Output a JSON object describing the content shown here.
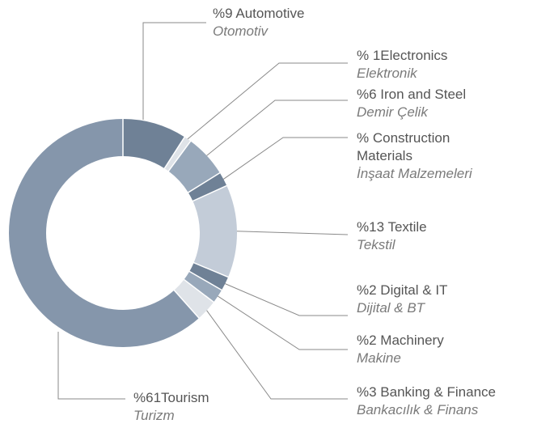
{
  "chart_data": {
    "type": "pie",
    "donut": true,
    "categories": [
      "%9 Automotive",
      "% 1Electronics",
      "%6 Iron and Steel",
      "% Construction Materials",
      "%13 Textile",
      "%2 Digital & IT",
      "%2 Machinery",
      "%3 Banking & Finance",
      "%61Tourism"
    ],
    "translations": [
      "Otomotiv",
      "Elektronik",
      "Demir Çelik",
      "İnşaat Malzemeleri",
      "Tekstil",
      "Dijital & BT",
      "Makine",
      "Bankacılık & Finans",
      "Turizm"
    ],
    "values": [
      9,
      1,
      6,
      2,
      13,
      2,
      2,
      3,
      61
    ],
    "colors": [
      "#6f8196",
      "#dfe3e8",
      "#98a8ba",
      "#6f8196",
      "#c3ccd8",
      "#6f8196",
      "#98a8ba",
      "#dfe3e8",
      "#8596ab"
    ]
  }
}
